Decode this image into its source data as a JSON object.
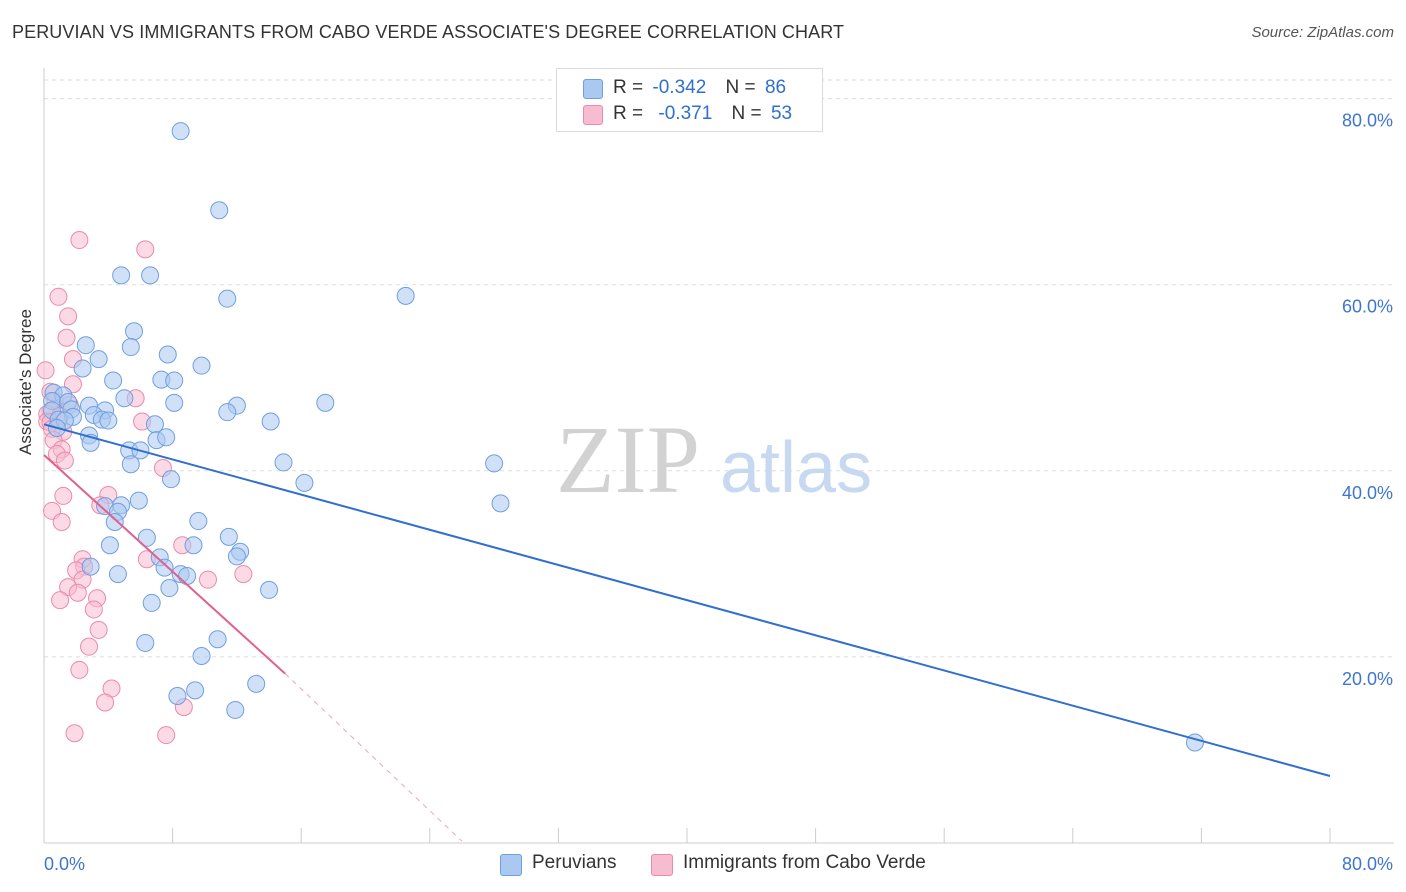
{
  "title": "PERUVIAN VS IMMIGRANTS FROM CABO VERDE ASSOCIATE'S DEGREE CORRELATION CHART",
  "source": "Source: ZipAtlas.com",
  "watermark": {
    "zip": "ZIP",
    "atlas": "atlas"
  },
  "legend": {
    "rows": [
      {
        "r_label": "R =",
        "r_value": "-0.342",
        "n_label": "N =",
        "n_value": "86"
      },
      {
        "r_label": "R =",
        "r_value": "-0.371",
        "n_label": "N =",
        "n_value": "53"
      }
    ]
  },
  "bottom_legend": {
    "peruvians": "Peruvians",
    "cabo_verde": "Immigrants from Cabo Verde"
  },
  "colors": {
    "blue_fill": "#aac8f0",
    "blue_stroke": "#6f9fe0",
    "blue_line": "#2f6fd0",
    "pink_fill": "#f8bcd0",
    "pink_stroke": "#eb8aaa",
    "pink_line": "#e06090",
    "grid": "#dddddd",
    "tick_label": "#3f75cf"
  },
  "chart_data": {
    "type": "scatter",
    "title": "PERUVIAN VS IMMIGRANTS FROM CABO VERDE ASSOCIATE'S DEGREE CORRELATION CHART",
    "xlabel": "",
    "ylabel": "Associate's Degree",
    "xlim": [
      0,
      80
    ],
    "ylim": [
      0,
      82
    ],
    "x_tick_labels": [
      "0.0%",
      "80.0%"
    ],
    "y_ticks": [
      20,
      40,
      60,
      80
    ],
    "y_tick_labels": [
      "20.0%",
      "40.0%",
      "60.0%",
      "80.0%"
    ],
    "grid": true,
    "series": [
      {
        "name": "Peruvians",
        "r": -0.342,
        "n": 86,
        "trend": {
          "x0": 0,
          "y0": 45,
          "x1": 80,
          "y1": 7.2
        },
        "points": [
          [
            8.5,
            76.5
          ],
          [
            10.9,
            68
          ],
          [
            6.6,
            61
          ],
          [
            4.8,
            61
          ],
          [
            11.4,
            58.5
          ],
          [
            22.5,
            58.8
          ],
          [
            2.6,
            53.5
          ],
          [
            5.6,
            55
          ],
          [
            5.4,
            53.3
          ],
          [
            7.7,
            52.5
          ],
          [
            3.4,
            52
          ],
          [
            9.8,
            51.3
          ],
          [
            2.4,
            51
          ],
          [
            4.3,
            49.7
          ],
          [
            7.3,
            49.8
          ],
          [
            8.1,
            49.7
          ],
          [
            0.6,
            48.4
          ],
          [
            1.2,
            48.1
          ],
          [
            0.5,
            47.5
          ],
          [
            1.5,
            47.4
          ],
          [
            5.0,
            47.8
          ],
          [
            2.8,
            47
          ],
          [
            8.1,
            47.3
          ],
          [
            17.5,
            47.3
          ],
          [
            12.0,
            47
          ],
          [
            0.5,
            46.5
          ],
          [
            1.7,
            46.6
          ],
          [
            3.8,
            46.5
          ],
          [
            11.4,
            46.3
          ],
          [
            1.8,
            45.8
          ],
          [
            3.1,
            46
          ],
          [
            0.9,
            45.5
          ],
          [
            1.3,
            45.4
          ],
          [
            3.6,
            45.5
          ],
          [
            4.0,
            45.4
          ],
          [
            6.9,
            45
          ],
          [
            14.1,
            45.3
          ],
          [
            0.8,
            44.6
          ],
          [
            2.8,
            43.8
          ],
          [
            7.0,
            43.3
          ],
          [
            7.6,
            43.6
          ],
          [
            2.9,
            43
          ],
          [
            5.3,
            42.2
          ],
          [
            6.0,
            42.2
          ],
          [
            5.4,
            40.7
          ],
          [
            14.9,
            40.9
          ],
          [
            28.0,
            40.8
          ],
          [
            7.9,
            39.1
          ],
          [
            16.2,
            38.7
          ],
          [
            28.4,
            36.5
          ],
          [
            5.9,
            36.8
          ],
          [
            3.8,
            36.2
          ],
          [
            4.8,
            36.3
          ],
          [
            4.6,
            35.6
          ],
          [
            4.4,
            34.5
          ],
          [
            9.6,
            34.6
          ],
          [
            6.4,
            32.8
          ],
          [
            11.5,
            32.9
          ],
          [
            4.1,
            32
          ],
          [
            9.3,
            32
          ],
          [
            12.2,
            31.3
          ],
          [
            12.0,
            30.8
          ],
          [
            7.2,
            30.7
          ],
          [
            7.5,
            29.6
          ],
          [
            2.9,
            29.7
          ],
          [
            4.6,
            28.9
          ],
          [
            8.5,
            28.9
          ],
          [
            8.9,
            28.7
          ],
          [
            7.8,
            27.4
          ],
          [
            14.0,
            27.2
          ],
          [
            6.7,
            25.8
          ],
          [
            10.8,
            21.9
          ],
          [
            6.3,
            21.5
          ],
          [
            9.8,
            20.1
          ],
          [
            13.2,
            17.1
          ],
          [
            8.3,
            15.8
          ],
          [
            9.4,
            16.4
          ],
          [
            11.9,
            14.3
          ],
          [
            71.6,
            10.8
          ]
        ]
      },
      {
        "name": "Immigrants from Cabo Verde",
        "r": -0.371,
        "n": 53,
        "trend": {
          "x0": 0,
          "y0": 41.7,
          "x1": 15,
          "y1": 18.2
        },
        "trend_dashed_to": {
          "x": 26,
          "y": 0.2
        },
        "points": [
          [
            2.2,
            64.8
          ],
          [
            6.3,
            63.8
          ],
          [
            0.9,
            58.7
          ],
          [
            1.5,
            56.6
          ],
          [
            1.4,
            54.3
          ],
          [
            1.8,
            52
          ],
          [
            0.1,
            50.8
          ],
          [
            1.8,
            49.3
          ],
          [
            0.4,
            48.5
          ],
          [
            0.7,
            47.5
          ],
          [
            1.6,
            47.1
          ],
          [
            0.4,
            46.4
          ],
          [
            0.2,
            46.1
          ],
          [
            1.0,
            45.9
          ],
          [
            0.2,
            45.3
          ],
          [
            0.4,
            45.2
          ],
          [
            6.1,
            45.3
          ],
          [
            0.5,
            44.5
          ],
          [
            1.2,
            44.2
          ],
          [
            0.6,
            43.3
          ],
          [
            5.7,
            47.8
          ],
          [
            1.1,
            42.3
          ],
          [
            0.8,
            41.8
          ],
          [
            1.3,
            41.1
          ],
          [
            7.4,
            40.3
          ],
          [
            4.0,
            37.4
          ],
          [
            1.2,
            37.3
          ],
          [
            3.5,
            36.3
          ],
          [
            0.5,
            35.7
          ],
          [
            1.1,
            34.5
          ],
          [
            8.6,
            32
          ],
          [
            6.4,
            30.5
          ],
          [
            2.4,
            30.5
          ],
          [
            2.5,
            29.7
          ],
          [
            2.0,
            29.3
          ],
          [
            12.4,
            28.9
          ],
          [
            2.4,
            28.3
          ],
          [
            10.2,
            28.3
          ],
          [
            1.5,
            27.5
          ],
          [
            2.1,
            26.9
          ],
          [
            1.0,
            26.1
          ],
          [
            3.3,
            26.3
          ],
          [
            3.1,
            25.1
          ],
          [
            3.4,
            22.9
          ],
          [
            2.8,
            21.1
          ],
          [
            2.2,
            18.6
          ],
          [
            4.2,
            16.6
          ],
          [
            3.8,
            15.1
          ],
          [
            8.7,
            14.6
          ],
          [
            1.9,
            11.8
          ],
          [
            7.6,
            11.6
          ]
        ]
      }
    ]
  }
}
